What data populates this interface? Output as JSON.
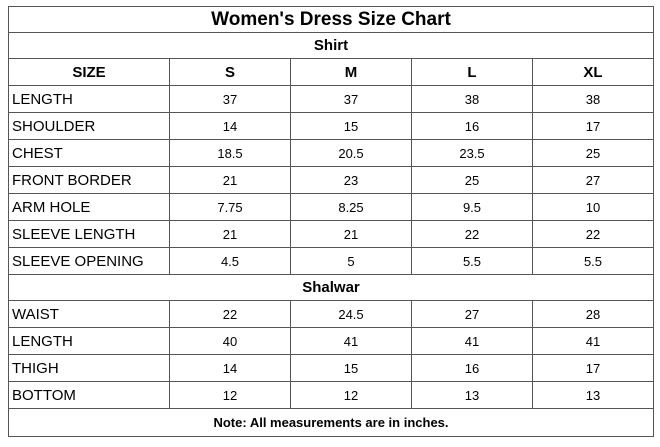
{
  "title": "Women's Dress Size Chart",
  "shirt": {
    "heading": "Shirt",
    "size_label": "SIZE",
    "sizes": [
      "S",
      "M",
      "L",
      "XL"
    ],
    "rows": [
      {
        "label": "LENGTH",
        "values": [
          "37",
          "37",
          "38",
          "38"
        ]
      },
      {
        "label": "SHOULDER",
        "values": [
          "14",
          "15",
          "16",
          "17"
        ]
      },
      {
        "label": "CHEST",
        "values": [
          "18.5",
          "20.5",
          "23.5",
          "25"
        ]
      },
      {
        "label": "FRONT BORDER",
        "values": [
          "21",
          "23",
          "25",
          "27"
        ]
      },
      {
        "label": "ARM HOLE",
        "values": [
          "7.75",
          "8.25",
          "9.5",
          "10"
        ]
      },
      {
        "label": "SLEEVE LENGTH",
        "values": [
          "21",
          "21",
          "22",
          "22"
        ]
      },
      {
        "label": "SLEEVE OPENING",
        "values": [
          "4.5",
          "5",
          "5.5",
          "5.5"
        ]
      }
    ]
  },
  "shalwar": {
    "heading": "Shalwar",
    "rows": [
      {
        "label": "WAIST",
        "values": [
          "22",
          "24.5",
          "27",
          "28"
        ]
      },
      {
        "label": "LENGTH",
        "values": [
          "40",
          "41",
          "41",
          "41"
        ]
      },
      {
        "label": "THIGH",
        "values": [
          "14",
          "15",
          "16",
          "17"
        ]
      },
      {
        "label": "BOTTOM",
        "values": [
          "12",
          "12",
          "13",
          "13"
        ]
      }
    ]
  },
  "note": "Note: All measurements are in inches."
}
